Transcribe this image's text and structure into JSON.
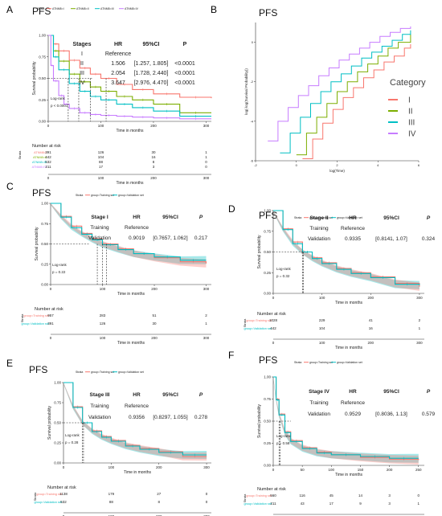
{
  "figure": {
    "panels": [
      {
        "label": "A",
        "title": "PFS"
      },
      {
        "label": "B",
        "title": "PFS"
      },
      {
        "label": "C",
        "title": "PFS"
      },
      {
        "label": "D",
        "title": "PFS"
      },
      {
        "label": "E",
        "title": "PFS"
      },
      {
        "label": "F",
        "title": "PFS"
      }
    ]
  },
  "colors": {
    "I": "#f8766d",
    "II": "#7cae00",
    "III": "#00bfc4",
    "IV": "#c77cff",
    "training": "#f8766d",
    "validation": "#00bfc4"
  },
  "chart_data": [
    {
      "panel": "A",
      "type": "line",
      "title": "PFS",
      "xlabel": "Time in months",
      "ylabel": "Survival probability",
      "xlim": [
        0,
        310
      ],
      "ylim": [
        0,
        1
      ],
      "xticks": [
        0,
        100,
        200,
        300
      ],
      "yticks": [
        0.0,
        0.25,
        0.5,
        0.75,
        1.0
      ],
      "legend_title": "Strata",
      "series": [
        {
          "name": "ATNM8=I",
          "color": "#f8766d",
          "x": [
            0,
            10,
            20,
            40,
            60,
            80,
            100,
            130,
            160,
            200,
            250,
            310
          ],
          "y": [
            1,
            0.9,
            0.82,
            0.71,
            0.62,
            0.55,
            0.5,
            0.43,
            0.37,
            0.32,
            0.28,
            0.27
          ]
        },
        {
          "name": "ATNM8=II",
          "color": "#7cae00",
          "x": [
            0,
            10,
            20,
            40,
            60,
            80,
            100,
            130,
            160,
            200,
            250,
            310
          ],
          "y": [
            1,
            0.82,
            0.7,
            0.55,
            0.46,
            0.4,
            0.35,
            0.29,
            0.25,
            0.2,
            0.1,
            0.1
          ]
        },
        {
          "name": "ATNM8=III",
          "color": "#00bfc4",
          "x": [
            0,
            10,
            20,
            40,
            60,
            80,
            100,
            130,
            160,
            200,
            250,
            310
          ],
          "y": [
            1,
            0.75,
            0.6,
            0.44,
            0.35,
            0.29,
            0.25,
            0.2,
            0.16,
            0.12,
            0.06,
            0.06
          ]
        },
        {
          "name": "ATNM8=IV",
          "color": "#c77cff",
          "x": [
            0,
            5,
            10,
            20,
            30,
            40,
            60,
            80,
            100,
            130,
            160,
            200,
            250,
            310
          ],
          "y": [
            1,
            0.65,
            0.47,
            0.3,
            0.2,
            0.15,
            0.1,
            0.08,
            0.07,
            0.06,
            0.05,
            0.04,
            0.03,
            0.03
          ]
        }
      ],
      "table": {
        "headers": [
          "Stages",
          "HR",
          "95%CI",
          "P"
        ],
        "rows": [
          [
            "I",
            "Reference",
            "",
            ""
          ],
          [
            "II",
            "1.506",
            "[1.257, 1.805]",
            "<0.0001"
          ],
          [
            "III",
            "2.054",
            "[1.728, 2.440]",
            "<0.0001"
          ],
          [
            "IV",
            "3.647",
            "[2.976, 4.470]",
            "<0.0001"
          ]
        ]
      },
      "logrank": "Log-rank",
      "pvalue": "p < 0.0001",
      "risk_table": {
        "title": "Number at risk",
        "strata_label": "Strata",
        "xlabel": "Time in months",
        "rows": [
          {
            "name": "ATNM8=I",
            "values": [
              "391",
              "126",
              "30",
              "1"
            ]
          },
          {
            "name": "ATNM8=II",
            "values": [
              "442",
              "104",
              "16",
              "1"
            ]
          },
          {
            "name": "ATNM8=III",
            "values": [
              "532",
              "88",
              "8",
              "0"
            ]
          },
          {
            "name": "ATNM8=IV",
            "values": [
              "211",
              "17",
              "3",
              "0"
            ]
          }
        ]
      }
    },
    {
      "panel": "B",
      "type": "line",
      "title": "PFS",
      "xlabel": "log(Time)",
      "ylabel": "log(-log(Survival Probability))",
      "xlim": [
        -2,
        6
      ],
      "ylim": [
        -6,
        1
      ],
      "xticks": [
        -2,
        0,
        2,
        4,
        6
      ],
      "yticks": [
        -6,
        -4,
        -2,
        0
      ],
      "legend_title": "Category",
      "series": [
        {
          "name": "I",
          "color": "#f8766d",
          "x": [
            0.3,
            0.8,
            1.3,
            1.8,
            2.3,
            2.8,
            3.3,
            3.8,
            4.3,
            4.8,
            5.3,
            5.6
          ],
          "y": [
            -5.9,
            -4.9,
            -4.1,
            -3.4,
            -2.8,
            -2.3,
            -1.8,
            -1.4,
            -1,
            -0.7,
            -0.3,
            -0.1
          ]
        },
        {
          "name": "II",
          "color": "#7cae00",
          "x": [
            0,
            0.5,
            1,
            1.5,
            2,
            2.5,
            3,
            3.5,
            4,
            4.5,
            5,
            5.6
          ],
          "y": [
            -5.7,
            -4.6,
            -3.8,
            -3.1,
            -2.5,
            -2,
            -1.5,
            -1.1,
            -0.7,
            -0.3,
            0,
            0.4
          ]
        },
        {
          "name": "III",
          "color": "#00bfc4",
          "x": [
            -0.8,
            -0.3,
            0.2,
            0.7,
            1.2,
            1.7,
            2.2,
            2.7,
            3.2,
            3.7,
            4.2,
            4.7,
            5.2,
            5.6
          ],
          "y": [
            -5.6,
            -4.6,
            -3.8,
            -3.1,
            -2.5,
            -2,
            -1.6,
            -1.2,
            -0.8,
            -0.5,
            -0.2,
            0.1,
            0.4,
            0.6
          ]
        },
        {
          "name": "IV",
          "color": "#c77cff",
          "x": [
            -1.4,
            -0.9,
            -0.4,
            0.1,
            0.6,
            1.1,
            1.6,
            2.1,
            2.6,
            3.1,
            3.6,
            4.1,
            4.6,
            5.1,
            5.6
          ],
          "y": [
            -5,
            -4,
            -3.3,
            -2.7,
            -2.2,
            -1.7,
            -1.3,
            -0.9,
            -0.6,
            -0.3,
            0,
            0.3,
            0.5,
            0.7,
            0.8
          ]
        }
      ]
    },
    {
      "panel": "C",
      "type": "line",
      "title": "PFS",
      "xlabel": "Time in months",
      "ylabel": "Survival probability",
      "xlim": [
        0,
        310
      ],
      "ylim": [
        0,
        1
      ],
      "xticks": [
        0,
        100,
        200,
        300
      ],
      "yticks": [
        0.0,
        0.25,
        0.5,
        0.75,
        1.0
      ],
      "legend_title": "Strata",
      "series": [
        {
          "name": "group=Training set",
          "color": "#f8766d",
          "x": [
            0,
            20,
            40,
            60,
            80,
            100,
            130,
            160,
            200,
            250,
            300
          ],
          "y": [
            1,
            0.84,
            0.72,
            0.63,
            0.56,
            0.5,
            0.44,
            0.38,
            0.33,
            0.28,
            0.26
          ]
        },
        {
          "name": "group=Validation set",
          "color": "#00bfc4",
          "x": [
            0,
            20,
            40,
            60,
            80,
            100,
            130,
            160,
            200,
            250,
            300
          ],
          "y": [
            1,
            0.83,
            0.7,
            0.62,
            0.55,
            0.49,
            0.43,
            0.38,
            0.34,
            0.3,
            0.3
          ]
        }
      ],
      "table": {
        "headers": [
          "Stage I",
          "HR",
          "95%CI",
          "P"
        ],
        "rows": [
          [
            "Training",
            "Reference",
            "",
            ""
          ],
          [
            "Validation",
            "0.9019",
            "[0.7657, 1.062]",
            "0.217"
          ]
        ]
      },
      "logrank": "Log-rank",
      "pvalue": "p = 0.22",
      "risk_table": {
        "title": "Number at risk",
        "strata_label": "Strata",
        "xlabel": "Time in months",
        "rows": [
          {
            "name": "group=Training set",
            "values": [
              "957",
              "283",
              "51",
              "2"
            ]
          },
          {
            "name": "group=Validation set",
            "values": [
              "391",
              "126",
              "30",
              "1"
            ]
          }
        ]
      }
    },
    {
      "panel": "D",
      "type": "line",
      "title": "PFS",
      "xlabel": "Time in months",
      "ylabel": "Survival probability",
      "xlim": [
        0,
        310
      ],
      "ylim": [
        0,
        1
      ],
      "xticks": [
        0,
        100,
        200,
        300
      ],
      "yticks": [
        0.0,
        0.25,
        0.5,
        0.75,
        1.0
      ],
      "legend_title": "Strata",
      "series": [
        {
          "name": "group=Training set",
          "color": "#f8766d",
          "x": [
            0,
            20,
            40,
            60,
            80,
            100,
            130,
            160,
            200,
            250,
            300
          ],
          "y": [
            1,
            0.78,
            0.62,
            0.5,
            0.43,
            0.37,
            0.3,
            0.25,
            0.2,
            0.12,
            0.08
          ]
        },
        {
          "name": "group=Validation set",
          "color": "#00bfc4",
          "x": [
            0,
            20,
            40,
            60,
            80,
            100,
            130,
            160,
            200,
            250,
            300
          ],
          "y": [
            1,
            0.77,
            0.6,
            0.5,
            0.42,
            0.36,
            0.29,
            0.24,
            0.19,
            0.11,
            0.1
          ]
        }
      ],
      "table": {
        "headers": [
          "Stage II",
          "HR",
          "95%CI",
          "P"
        ],
        "rows": [
          [
            "Training",
            "Reference",
            "",
            ""
          ],
          [
            "Validation",
            "0.9335",
            "[0.8141, 1.07]",
            "0.324"
          ]
        ]
      },
      "logrank": "Log-rank",
      "pvalue": "p = 0.32",
      "risk_table": {
        "title": "Number at risk",
        "strata_label": "Strata",
        "xlabel": "Time in months",
        "rows": [
          {
            "name": "group=Training set",
            "values": [
              "1028",
              "229",
              "41",
              "2"
            ]
          },
          {
            "name": "group=Validation set",
            "values": [
              "442",
              "104",
              "16",
              "1"
            ]
          }
        ]
      }
    },
    {
      "panel": "E",
      "type": "line",
      "title": "PFS",
      "xlabel": "Time in months",
      "ylabel": "Survival probability",
      "xlim": [
        0,
        310
      ],
      "ylim": [
        0,
        1
      ],
      "xticks": [
        0,
        100,
        200,
        300
      ],
      "yticks": [
        0.0,
        0.25,
        0.5,
        0.75,
        1.0
      ],
      "legend_title": "Strata",
      "series": [
        {
          "name": "group=Training set",
          "color": "#f8766d",
          "x": [
            0,
            20,
            40,
            60,
            80,
            100,
            130,
            160,
            200,
            250,
            300
          ],
          "y": [
            1,
            0.7,
            0.5,
            0.4,
            0.33,
            0.28,
            0.22,
            0.18,
            0.14,
            0.08,
            0.08
          ]
        },
        {
          "name": "group=Validation set",
          "color": "#00bfc4",
          "x": [
            0,
            20,
            40,
            60,
            80,
            100,
            130,
            160,
            200,
            250,
            300
          ],
          "y": [
            1,
            0.69,
            0.5,
            0.39,
            0.32,
            0.27,
            0.21,
            0.17,
            0.13,
            0.1,
            0.1
          ]
        }
      ],
      "table": {
        "headers": [
          "Stage III",
          "HR",
          "95%CI",
          "P"
        ],
        "rows": [
          [
            "Training",
            "Reference",
            "",
            ""
          ],
          [
            "Validation",
            "0.9356",
            "[0.8297, 1.055]",
            "0.278"
          ]
        ]
      },
      "logrank": "Log-rank",
      "pvalue": "p = 0.28",
      "risk_table": {
        "title": "Number at risk",
        "strata_label": "Strata",
        "xlabel": "Time in months",
        "rows": [
          {
            "name": "group=Training set",
            "values": [
              "1138",
              "179",
              "27",
              "0"
            ]
          },
          {
            "name": "group=Validation set",
            "values": [
              "532",
              "88",
              "8",
              "0"
            ]
          }
        ]
      }
    },
    {
      "panel": "F",
      "type": "line",
      "title": "PFS",
      "xlabel": "Time in months",
      "ylabel": "Survival probability",
      "xlim": [
        0,
        260
      ],
      "ylim": [
        0,
        1
      ],
      "xticks": [
        0,
        50,
        100,
        150,
        200,
        250
      ],
      "yticks": [
        0.0,
        0.25,
        0.5,
        0.75,
        1.0
      ],
      "legend_title": "Strata",
      "series": [
        {
          "name": "group=Training set",
          "color": "#f8766d",
          "x": [
            0,
            5,
            10,
            20,
            30,
            50,
            75,
            100,
            150,
            200,
            250
          ],
          "y": [
            1,
            0.75,
            0.58,
            0.38,
            0.28,
            0.2,
            0.15,
            0.12,
            0.09,
            0.07,
            0.06
          ]
        },
        {
          "name": "group=Validation set",
          "color": "#00bfc4",
          "x": [
            0,
            5,
            10,
            20,
            30,
            50,
            75,
            100,
            150,
            200,
            250
          ],
          "y": [
            1,
            0.74,
            0.57,
            0.37,
            0.27,
            0.19,
            0.14,
            0.12,
            0.1,
            0.08,
            0.08
          ]
        }
      ],
      "table": {
        "headers": [
          "Stage IV",
          "HR",
          "95%CI",
          "P"
        ],
        "rows": [
          [
            "Training",
            "Reference",
            "",
            ""
          ],
          [
            "Validation",
            "0.9529",
            "[0.8036, 1.13]",
            "0.579"
          ]
        ]
      },
      "logrank": "Log-rank",
      "pvalue": "p = 0.58",
      "risk_table": {
        "title": "Number at risk",
        "strata_label": "Strata",
        "xlabel": "Time in months",
        "rows": [
          {
            "name": "group=Training set",
            "values": [
              "560",
              "116",
              "45",
              "14",
              "3",
              "0"
            ]
          },
          {
            "name": "group=Validation set",
            "values": [
              "211",
              "43",
              "17",
              "9",
              "3",
              "1"
            ]
          }
        ]
      }
    }
  ]
}
